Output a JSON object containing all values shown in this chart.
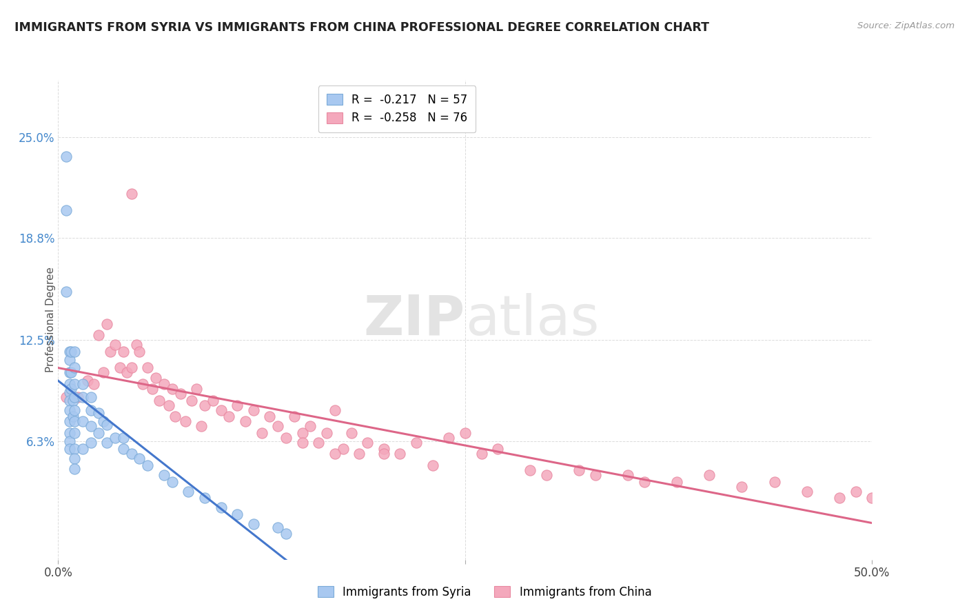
{
  "title": "IMMIGRANTS FROM SYRIA VS IMMIGRANTS FROM CHINA PROFESSIONAL DEGREE CORRELATION CHART",
  "source": "Source: ZipAtlas.com",
  "ylabel": "Professional Degree",
  "ytick_labels": [
    "6.3%",
    "12.5%",
    "18.8%",
    "25.0%"
  ],
  "ytick_values": [
    0.063,
    0.125,
    0.188,
    0.25
  ],
  "xlim": [
    0.0,
    0.5
  ],
  "ylim": [
    -0.01,
    0.285
  ],
  "legend_syria": "R =  -0.217   N = 57",
  "legend_china": "R =  -0.258   N = 76",
  "legend_label_syria": "Immigrants from Syria",
  "legend_label_china": "Immigrants from China",
  "syria_color": "#a8c8f0",
  "syria_edge_color": "#7aaad8",
  "china_color": "#f4a8bc",
  "china_edge_color": "#e888a0",
  "syria_line_color": "#4477cc",
  "china_line_color": "#dd6688",
  "watermark_zip": "ZIP",
  "watermark_atlas": "atlas",
  "syria_scatter_x": [
    0.005,
    0.005,
    0.005,
    0.007,
    0.007,
    0.007,
    0.007,
    0.007,
    0.007,
    0.007,
    0.007,
    0.007,
    0.007,
    0.007,
    0.008,
    0.008,
    0.008,
    0.009,
    0.009,
    0.01,
    0.01,
    0.01,
    0.01,
    0.01,
    0.01,
    0.01,
    0.01,
    0.01,
    0.01,
    0.015,
    0.015,
    0.015,
    0.015,
    0.02,
    0.02,
    0.02,
    0.02,
    0.025,
    0.025,
    0.028,
    0.03,
    0.03,
    0.035,
    0.04,
    0.04,
    0.045,
    0.05,
    0.055,
    0.065,
    0.07,
    0.08,
    0.09,
    0.1,
    0.11,
    0.12,
    0.135,
    0.14
  ],
  "syria_scatter_y": [
    0.238,
    0.205,
    0.155,
    0.118,
    0.113,
    0.105,
    0.098,
    0.093,
    0.088,
    0.082,
    0.075,
    0.068,
    0.063,
    0.058,
    0.118,
    0.105,
    0.095,
    0.088,
    0.078,
    0.118,
    0.108,
    0.098,
    0.09,
    0.082,
    0.075,
    0.068,
    0.058,
    0.052,
    0.046,
    0.098,
    0.09,
    0.075,
    0.058,
    0.09,
    0.082,
    0.072,
    0.062,
    0.08,
    0.068,
    0.075,
    0.073,
    0.062,
    0.065,
    0.065,
    0.058,
    0.055,
    0.052,
    0.048,
    0.042,
    0.038,
    0.032,
    0.028,
    0.022,
    0.018,
    0.012,
    0.01,
    0.006
  ],
  "china_scatter_x": [
    0.005,
    0.012,
    0.018,
    0.022,
    0.025,
    0.028,
    0.03,
    0.032,
    0.035,
    0.038,
    0.04,
    0.042,
    0.045,
    0.045,
    0.048,
    0.05,
    0.052,
    0.055,
    0.058,
    0.06,
    0.062,
    0.065,
    0.068,
    0.07,
    0.072,
    0.075,
    0.078,
    0.082,
    0.085,
    0.088,
    0.09,
    0.095,
    0.1,
    0.105,
    0.11,
    0.115,
    0.12,
    0.125,
    0.13,
    0.135,
    0.14,
    0.145,
    0.15,
    0.155,
    0.16,
    0.165,
    0.17,
    0.175,
    0.18,
    0.185,
    0.19,
    0.2,
    0.21,
    0.22,
    0.23,
    0.25,
    0.27,
    0.3,
    0.32,
    0.35,
    0.38,
    0.4,
    0.42,
    0.44,
    0.46,
    0.48,
    0.49,
    0.5,
    0.33,
    0.36,
    0.29,
    0.26,
    0.24,
    0.15,
    0.17,
    0.2
  ],
  "china_scatter_y": [
    0.09,
    0.09,
    0.1,
    0.098,
    0.128,
    0.105,
    0.135,
    0.118,
    0.122,
    0.108,
    0.118,
    0.105,
    0.215,
    0.108,
    0.122,
    0.118,
    0.098,
    0.108,
    0.095,
    0.102,
    0.088,
    0.098,
    0.085,
    0.095,
    0.078,
    0.092,
    0.075,
    0.088,
    0.095,
    0.072,
    0.085,
    0.088,
    0.082,
    0.078,
    0.085,
    0.075,
    0.082,
    0.068,
    0.078,
    0.072,
    0.065,
    0.078,
    0.068,
    0.072,
    0.062,
    0.068,
    0.082,
    0.058,
    0.068,
    0.055,
    0.062,
    0.058,
    0.055,
    0.062,
    0.048,
    0.068,
    0.058,
    0.042,
    0.045,
    0.042,
    0.038,
    0.042,
    0.035,
    0.038,
    0.032,
    0.028,
    0.032,
    0.028,
    0.042,
    0.038,
    0.045,
    0.055,
    0.065,
    0.062,
    0.055,
    0.055
  ]
}
